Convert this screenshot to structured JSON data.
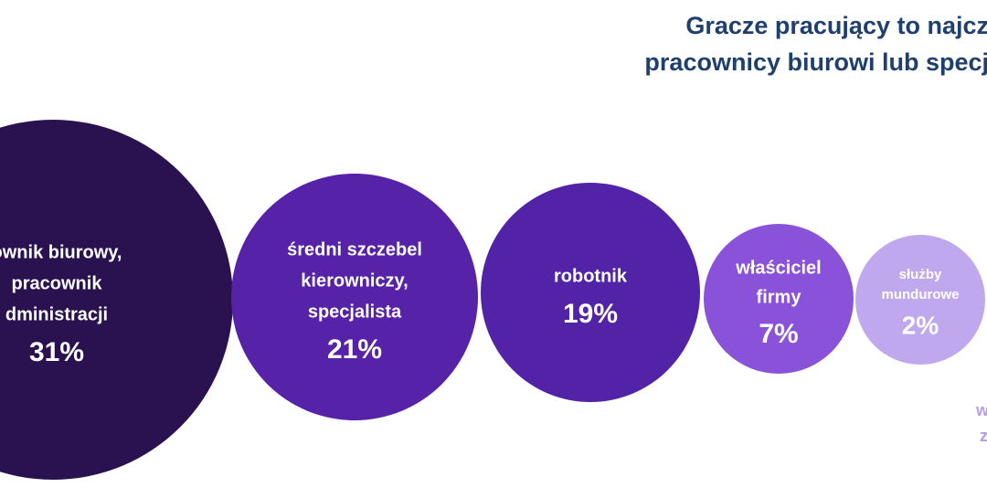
{
  "chart_data": {
    "type": "bubble",
    "title": [
      "Gracze pracujący to najcz",
      "pracownicy biurowi lub specj"
    ],
    "categories": [
      [
        "ownik biurowy,",
        "pracownik",
        "dministracji"
      ],
      [
        "średni szczebel",
        "kierowniczy,",
        "specjalista"
      ],
      [
        "robotnik"
      ],
      [
        "właściciel",
        "firmy"
      ],
      [
        "służby",
        "mundurowe"
      ]
    ],
    "values": [
      31,
      21,
      19,
      7,
      2
    ],
    "value_labels": [
      "31%",
      "21%",
      "19%",
      "7%",
      "2%"
    ],
    "colors": [
      "#2a1250",
      "#5522a8",
      "#5223a6",
      "#8a52d8",
      "#c0a8ee"
    ],
    "annotation": [
      "w",
      "z"
    ]
  }
}
